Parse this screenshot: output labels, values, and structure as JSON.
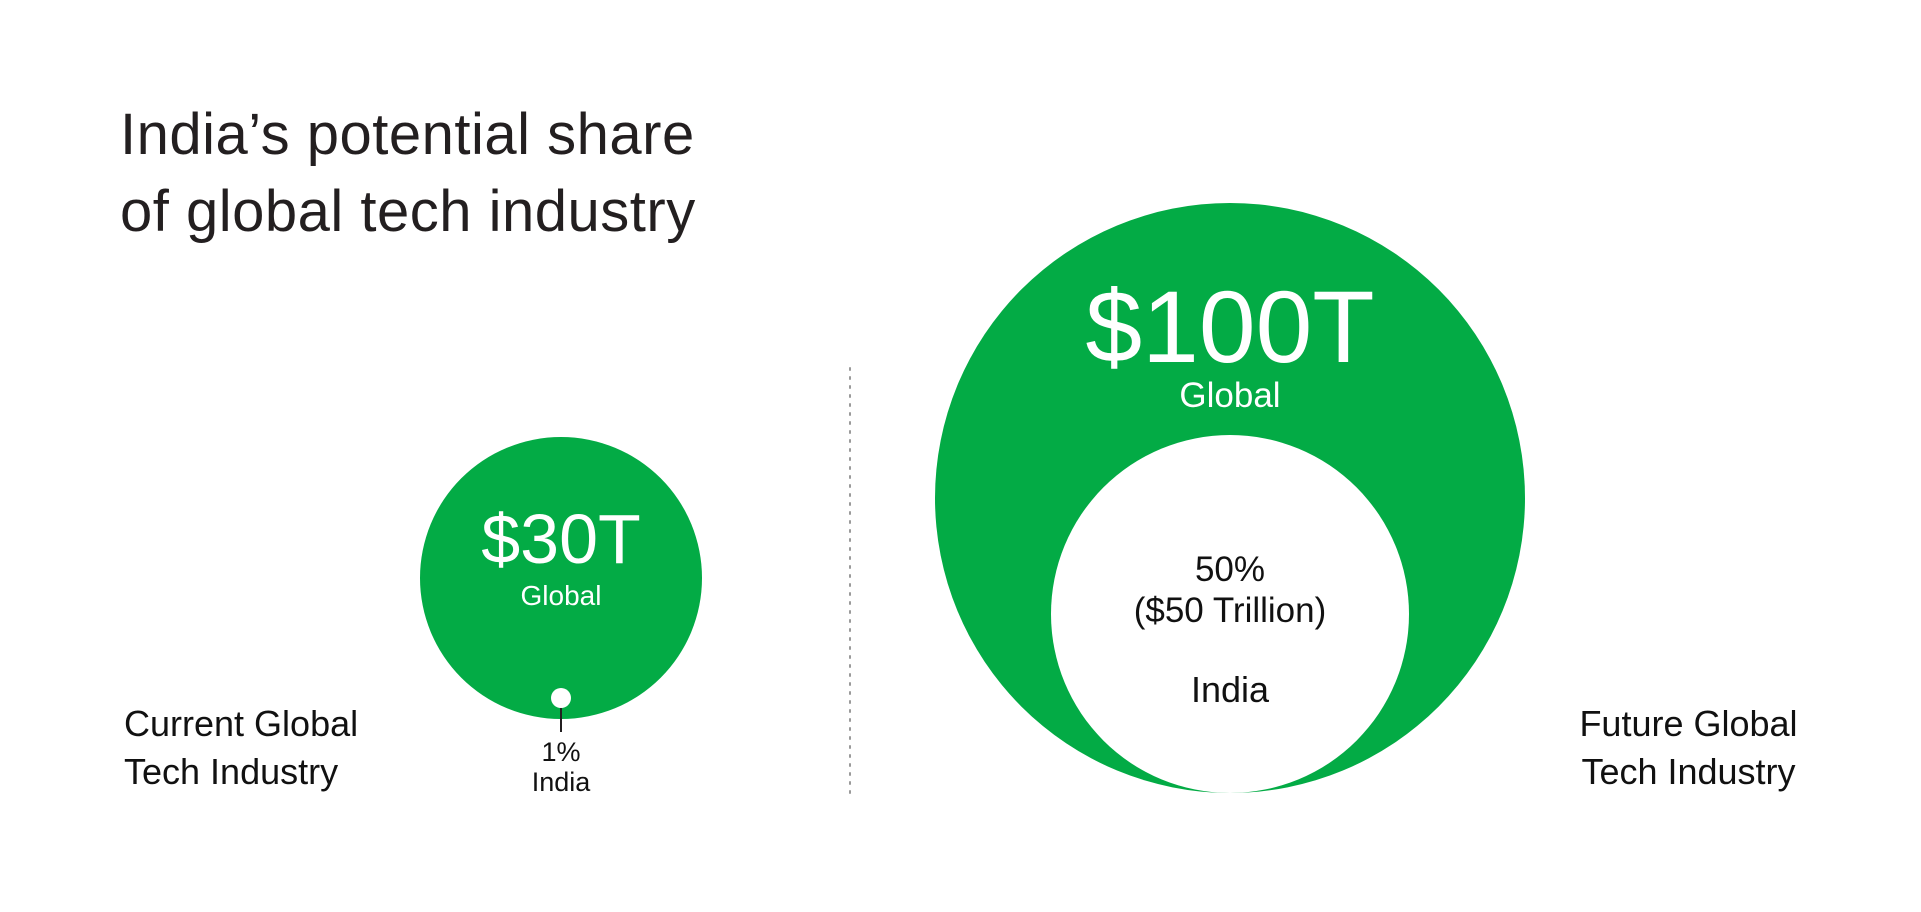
{
  "chart_data": {
    "type": "bubble",
    "title": [
      "India’s potential share",
      "of global tech industry"
    ],
    "groups": [
      {
        "label": [
          "Current Global",
          "Tech Industry"
        ],
        "global_value": 30,
        "global_label": "$30T",
        "global_caption": "Global",
        "india_share_percent": 1,
        "india_label_lines": [
          "1%",
          "India"
        ]
      },
      {
        "label": [
          "Future Global",
          "Tech Industry"
        ],
        "global_value": 100,
        "global_label": "$100T",
        "global_caption": "Global",
        "india_share_percent": 50,
        "india_label_lines": [
          "50%",
          "($50 Trillion)",
          "",
          "India"
        ]
      }
    ],
    "colors": {
      "global": "#03ab45",
      "india": "#ffffff",
      "divider": "#9a9a9a"
    }
  }
}
